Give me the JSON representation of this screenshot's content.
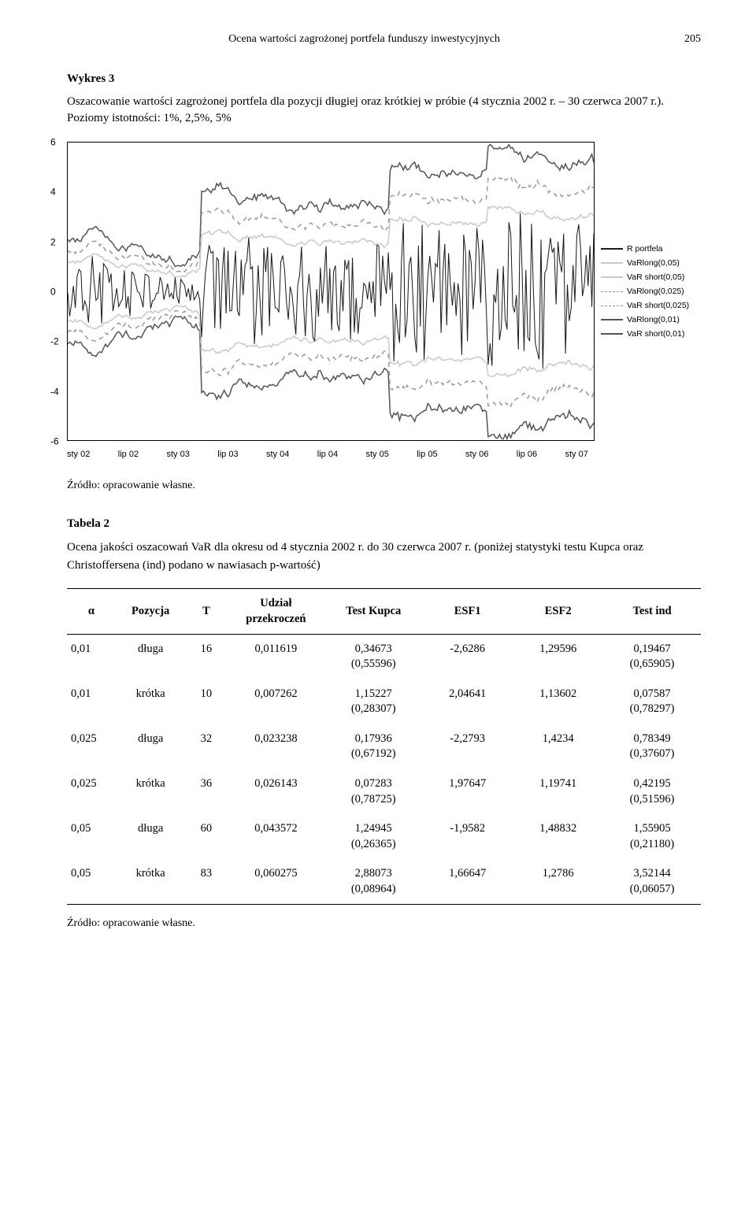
{
  "running_head": {
    "title": "Ocena wartości zagrożonej portfela funduszy inwestycyjnych",
    "page": "205"
  },
  "fig": {
    "label": "Wykres 3",
    "caption": "Oszacowanie wartości zagrożonej portfela dla pozycji długiej oraz krótkiej w próbie (4 stycznia 2002 r. – 30 czerwca 2007 r.). Poziomy istotności: 1%, 2,5%, 5%",
    "chart": {
      "type": "line-timeseries",
      "ylim": [
        -6,
        6
      ],
      "ytick_step": 2,
      "ytick_labels": [
        "6",
        "4",
        "2",
        "0",
        "-2",
        "-4",
        "-6"
      ],
      "xtick_labels": [
        "sty 02",
        "lip 02",
        "sty 03",
        "lip 03",
        "sty 04",
        "lip 04",
        "sty 05",
        "lip 05",
        "sty 06",
        "lip 06",
        "sty 07"
      ],
      "background_color": "#ffffff",
      "border_color": "#000000",
      "axis_fontsize": 11,
      "legend_fontsize": 10.5,
      "n_points": 280,
      "series": [
        {
          "name": "R portfela",
          "color": "#1a1a1a",
          "width": 1,
          "dash": "none",
          "role": "returns",
          "amp": 1.0
        },
        {
          "name": "VaRlong(0,05)",
          "color": "#c9c9c9",
          "width": 1.5,
          "dash": "none",
          "role": "upper",
          "band": 1.3
        },
        {
          "name": "VaR short(0,05)",
          "color": "#c9c9c9",
          "width": 1.5,
          "dash": "none",
          "role": "lower",
          "band": 1.3
        },
        {
          "name": "VaRlong(0,025)",
          "color": "#9a9a9a",
          "width": 1.5,
          "dash": "6,5",
          "role": "upper",
          "band": 1.75
        },
        {
          "name": "VaR short(0,025)",
          "color": "#9a9a9a",
          "width": 1.5,
          "dash": "6,5",
          "role": "lower",
          "band": 1.75
        },
        {
          "name": "VaRlong(0,01)",
          "color": "#555555",
          "width": 1.5,
          "dash": "none",
          "role": "upper",
          "band": 2.25
        },
        {
          "name": "VaR short(0,01)",
          "color": "#555555",
          "width": 1.5,
          "dash": "none",
          "role": "lower",
          "band": 2.25
        }
      ]
    },
    "source": "Źródło: opracowanie własne."
  },
  "table": {
    "label": "Tabela 2",
    "caption": "Ocena jakości oszacowań VaR dla okresu od 4 stycznia 2002 r. do 30 czerwca 2007 r. (poniżej statystyki testu Kupca oraz Christoffersena (ind) podano w nawiasach p-wartość)",
    "columns": [
      "α",
      "Pozycja",
      "T",
      "Udział przekroczeń",
      "Test Kupca",
      "ESF1",
      "ESF2",
      "Test ind"
    ],
    "rows": [
      {
        "alpha": "0,01",
        "poz": "długa",
        "T": "16",
        "udz": "0,011619",
        "kupca": "0,34673",
        "kupca_p": "(0,55596)",
        "esf1": "-2,6286",
        "esf2": "1,29596",
        "ind": "0,19467",
        "ind_p": "(0,65905)"
      },
      {
        "alpha": "0,01",
        "poz": "krótka",
        "T": "10",
        "udz": "0,007262",
        "kupca": "1,15227",
        "kupca_p": "(0,28307)",
        "esf1": "2,04641",
        "esf2": "1,13602",
        "ind": "0,07587",
        "ind_p": "(0,78297)"
      },
      {
        "alpha": "0,025",
        "poz": "długa",
        "T": "32",
        "udz": "0,023238",
        "kupca": "0,17936",
        "kupca_p": "(0,67192)",
        "esf1": "-2,2793",
        "esf2": "1,4234",
        "ind": "0,78349",
        "ind_p": "(0,37607)"
      },
      {
        "alpha": "0,025",
        "poz": "krótka",
        "T": "36",
        "udz": "0,026143",
        "kupca": "0,07283",
        "kupca_p": "(0,78725)",
        "esf1": "1,97647",
        "esf2": "1,19741",
        "ind": "0,42195",
        "ind_p": "(0,51596)"
      },
      {
        "alpha": "0,05",
        "poz": "długa",
        "T": "60",
        "udz": "0,043572",
        "kupca": "1,24945",
        "kupca_p": "(0,26365)",
        "esf1": "-1,9582",
        "esf2": "1,48832",
        "ind": "1,55905",
        "ind_p": "(0,21180)"
      },
      {
        "alpha": "0,05",
        "poz": "krótka",
        "T": "83",
        "udz": "0,060275",
        "kupca": "2,88073",
        "kupca_p": "(0,08964)",
        "esf1": "1,66647",
        "esf2": "1,2786",
        "ind": "3,52144",
        "ind_p": "(0,06057)"
      }
    ],
    "source": "Źródło: opracowanie własne."
  }
}
